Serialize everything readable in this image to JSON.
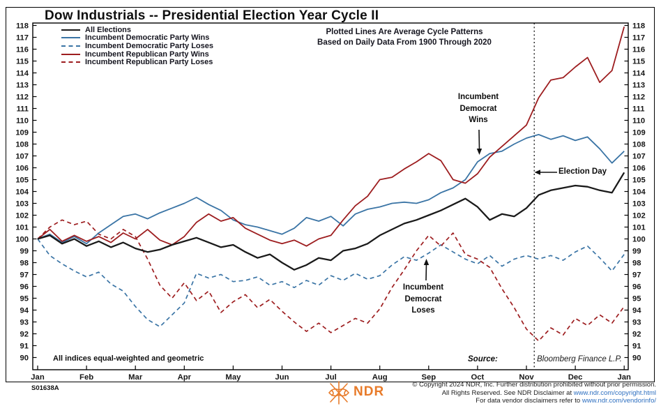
{
  "title": "Dow Industrials -- Presidential Election Year Cycle II",
  "panel_id": "S01638A",
  "subtitle_lines": [
    "Plotted Lines Are Average Cycle Patterns",
    "Based on Daily Data From 1900 Through 2020"
  ],
  "legend": [
    {
      "label": "All Elections",
      "color": "#1a1a1a",
      "dash": "solid",
      "width": 2.4
    },
    {
      "label": "Incumbent Democratic Party Wins",
      "color": "#3a74a5",
      "dash": "solid",
      "width": 2.2
    },
    {
      "label": "Incumbent Democratic Party Loses",
      "color": "#3a74a5",
      "dash": "dashed",
      "width": 2
    },
    {
      "label": "Incumbent Republican Party Wins",
      "color": "#9d1d1f",
      "dash": "solid",
      "width": 2.2
    },
    {
      "label": "Incumbent Republican Party Loses",
      "color": "#9d1d1f",
      "dash": "dashed",
      "width": 2
    }
  ],
  "annotations": {
    "dem_wins": {
      "line1": "Incumbent",
      "line2": "Democrat",
      "line3": "Wins"
    },
    "dem_loses": {
      "line1": "Incumbent",
      "line2": "Democrat",
      "line3": "Loses"
    },
    "election_day": {
      "label": "Election Day"
    }
  },
  "footnote": "All indices equal-weighted and geometric",
  "source": {
    "label": "Source:",
    "text": "Bloomberg Finance L.P."
  },
  "footer": {
    "logo_text": "NDR",
    "logo_color": "#e87b2a",
    "link_color": "#2d6fc0",
    "copyright_line1": "© Copyright 2024 NDR, Inc. Further distribution prohibited without prior permission.",
    "copyright_line2_prefix": "All Rights Reserved. See NDR Disclaimer at ",
    "copyright_line2_link": "www.ndr.com/copyright.html",
    "copyright_line3_prefix": "For data vendor disclaimers refer to ",
    "copyright_line3_link": "www.ndr.com/vendorinfo/"
  },
  "chart_data": {
    "type": "line",
    "title": "Dow Industrials -- Presidential Election Year Cycle II",
    "x_axis": {
      "labels": [
        "Jan",
        "Feb",
        "Mar",
        "Apr",
        "May",
        "Jun",
        "Jul",
        "Aug",
        "Sep",
        "Oct",
        "Nov",
        "Dec",
        "Jan"
      ]
    },
    "y_axis": {
      "min": 90,
      "max": 118,
      "tick_step": 1,
      "sides": "both"
    },
    "x_step_months": 0.25,
    "election_day_month": 10.16,
    "base_value": 100,
    "series": [
      {
        "name": "All Elections",
        "color": "#1a1a1a",
        "style": "solid",
        "stroke_width": 2.3,
        "values": [
          100.0,
          100.3,
          99.6,
          100.0,
          99.4,
          99.8,
          99.3,
          99.7,
          99.2,
          98.9,
          99.1,
          99.5,
          99.8,
          100.1,
          99.7,
          99.3,
          99.5,
          98.9,
          98.4,
          98.7,
          98.0,
          97.4,
          97.8,
          98.4,
          98.2,
          99.0,
          99.2,
          99.6,
          100.3,
          100.8,
          101.3,
          101.6,
          102.0,
          102.4,
          102.9,
          103.4,
          102.7,
          101.6,
          102.1,
          101.9,
          102.6,
          103.7,
          104.1,
          104.3,
          104.5,
          104.4,
          104.1,
          103.9,
          105.6
        ]
      },
      {
        "name": "Incumbent Democratic Party Wins",
        "color": "#3a74a5",
        "style": "solid",
        "stroke_width": 1.8,
        "values": [
          100.0,
          100.4,
          99.7,
          100.2,
          99.6,
          100.5,
          101.2,
          101.9,
          102.1,
          101.7,
          102.2,
          102.6,
          103.0,
          103.5,
          102.9,
          102.4,
          101.6,
          101.2,
          101.0,
          100.7,
          100.4,
          100.9,
          101.8,
          101.5,
          101.9,
          101.1,
          102.1,
          102.5,
          102.7,
          103.0,
          103.1,
          103.0,
          103.3,
          103.9,
          104.3,
          105.0,
          106.5,
          107.2,
          107.4,
          108.0,
          108.5,
          108.8,
          108.4,
          108.7,
          108.3,
          108.6,
          107.6,
          106.4,
          107.4
        ]
      },
      {
        "name": "Incumbent Democratic Party Loses",
        "color": "#3a74a5",
        "style": "dashed",
        "stroke_width": 1.7,
        "values": [
          100.0,
          98.6,
          97.9,
          97.3,
          96.8,
          97.2,
          96.2,
          95.6,
          94.3,
          93.2,
          92.6,
          93.6,
          94.6,
          97.1,
          96.7,
          97.0,
          96.4,
          96.5,
          96.8,
          96.1,
          96.4,
          95.9,
          96.5,
          96.1,
          96.9,
          96.5,
          97.1,
          96.6,
          96.9,
          97.8,
          98.5,
          98.2,
          98.8,
          99.5,
          98.9,
          98.3,
          97.9,
          98.6,
          97.7,
          98.3,
          98.6,
          98.3,
          98.6,
          98.2,
          98.9,
          99.4,
          98.4,
          97.3,
          98.7
        ]
      },
      {
        "name": "Incumbent Republican Party Wins",
        "color": "#9d1d1f",
        "style": "solid",
        "stroke_width": 1.8,
        "values": [
          100.0,
          100.8,
          99.8,
          100.3,
          99.8,
          100.2,
          99.7,
          100.5,
          100.0,
          100.8,
          99.9,
          99.5,
          100.2,
          101.4,
          102.1,
          101.5,
          101.8,
          100.9,
          100.4,
          99.9,
          99.6,
          99.9,
          99.4,
          100.0,
          100.3,
          101.6,
          102.8,
          103.6,
          105.0,
          105.2,
          105.9,
          106.5,
          107.2,
          106.6,
          105.0,
          104.7,
          105.5,
          106.9,
          107.8,
          108.7,
          109.6,
          111.9,
          113.4,
          113.6,
          114.5,
          115.3,
          113.2,
          114.2,
          117.9
        ]
      },
      {
        "name": "Incumbent Republican Party Loses",
        "color": "#9d1d1f",
        "style": "dashed",
        "stroke_width": 1.7,
        "values": [
          100.0,
          101.0,
          101.6,
          101.2,
          101.5,
          100.4,
          100.0,
          100.8,
          100.2,
          98.3,
          96.1,
          95.0,
          96.3,
          94.8,
          95.6,
          93.8,
          94.7,
          95.3,
          94.2,
          94.9,
          93.9,
          93.0,
          92.2,
          92.9,
          92.1,
          92.7,
          93.3,
          92.9,
          94.1,
          95.9,
          97.4,
          99.0,
          100.3,
          99.4,
          100.5,
          98.7,
          98.3,
          97.6,
          95.8,
          94.2,
          92.4,
          91.4,
          92.5,
          91.9,
          93.3,
          92.7,
          93.6,
          92.9,
          94.3
        ]
      }
    ]
  }
}
